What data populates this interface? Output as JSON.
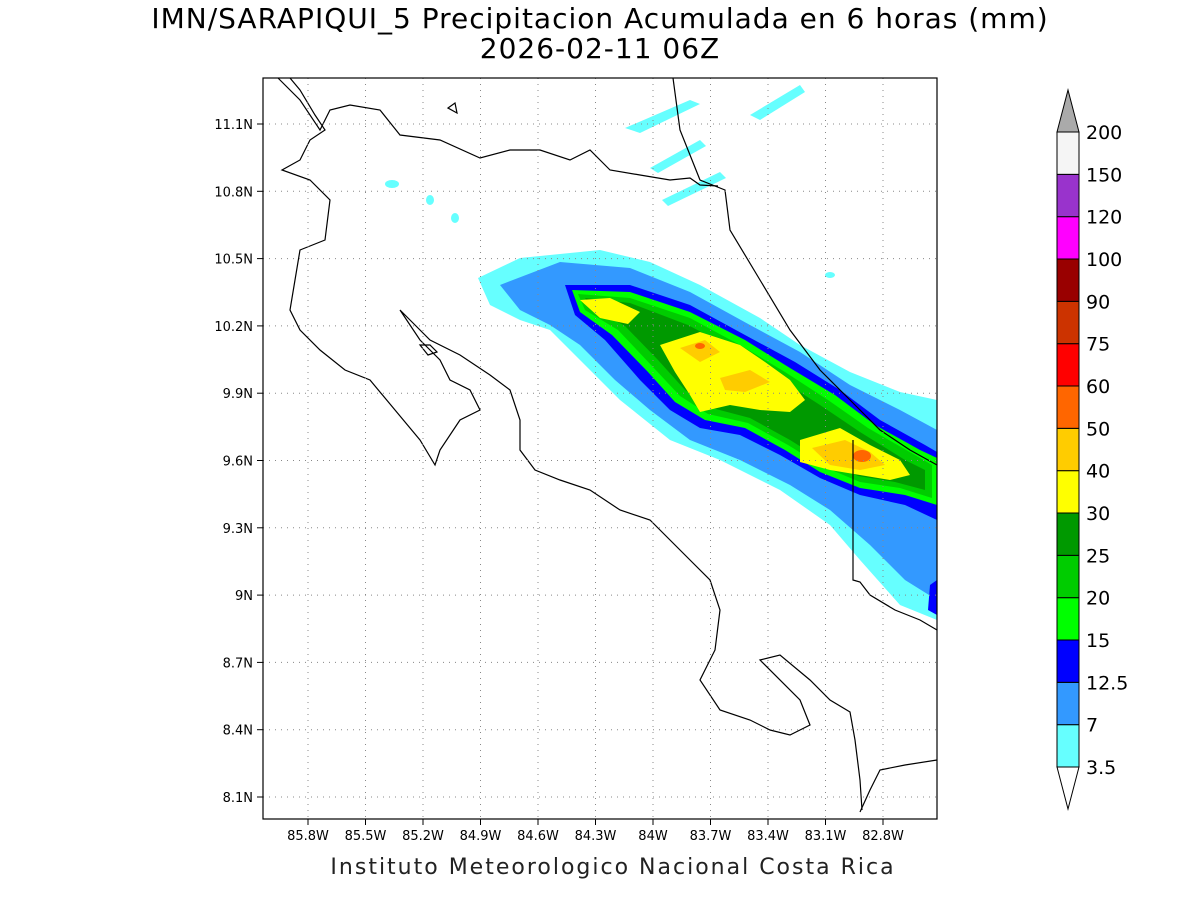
{
  "title_line1": "IMN/SARAPIQUI_5 Precipitacion Acumulada en 6 horas (mm)",
  "title_line2": "2026-02-11 06Z",
  "footer": "Instituto Meteorologico Nacional Costa Rica",
  "map": {
    "lon_ticks": [
      "85.8W",
      "85.5W",
      "85.2W",
      "84.9W",
      "84.6W",
      "84.3W",
      "84W",
      "83.7W",
      "83.4W",
      "83.1W",
      "82.8W"
    ],
    "lat_ticks": [
      "11.1N",
      "10.8N",
      "10.5N",
      "10.2N",
      "9.9N",
      "9.6N",
      "9.3N",
      "9N",
      "8.7N",
      "8.4N",
      "8.1N"
    ],
    "grid": true
  },
  "colorbar": {
    "levels": [
      "3.5",
      "7",
      "12.5",
      "15",
      "20",
      "25",
      "30",
      "40",
      "50",
      "60",
      "75",
      "90",
      "100",
      "120",
      "150",
      "200"
    ],
    "colors": [
      "#ffffff",
      "#66ffff",
      "#3399ff",
      "#0000ff",
      "#00ff00",
      "#00cc00",
      "#009900",
      "#ffff00",
      "#ffcc00",
      "#ff6600",
      "#ff0000",
      "#cc3300",
      "#990000",
      "#ff00ff",
      "#9933cc",
      "#f5f5f5",
      "#aaaaaa"
    ]
  }
}
